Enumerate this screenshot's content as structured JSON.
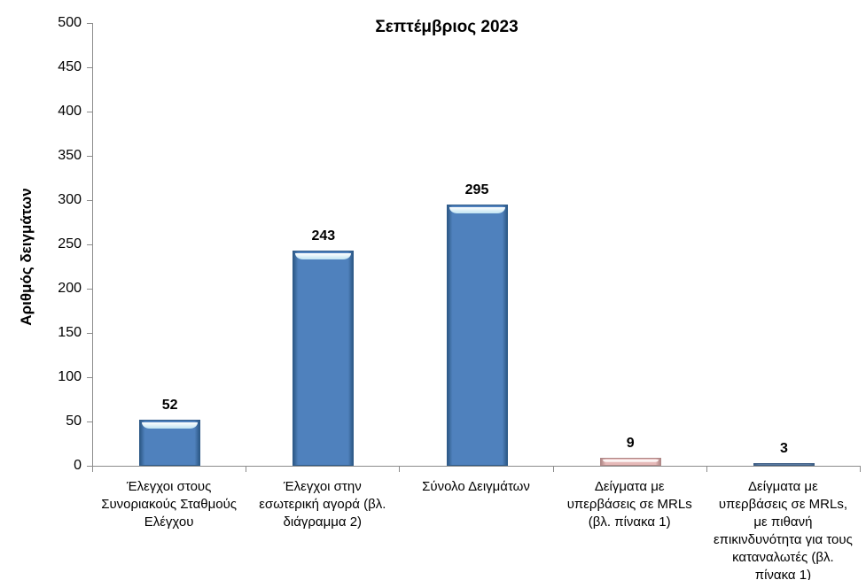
{
  "chart_data": {
    "type": "bar",
    "title": "Σεπτέμβριος 2023",
    "xlabel": "",
    "ylabel": "Αριθμός δειγμάτων",
    "ylim": [
      0,
      500
    ],
    "ytick_step": 50,
    "yticks": [
      0,
      50,
      100,
      150,
      200,
      250,
      300,
      350,
      400,
      450,
      500
    ],
    "grid": "off",
    "legend": "none",
    "categories": [
      "Έλεγχοι στους Συνοριακούς Σταθμούς Ελέγχου",
      "Έλεγχοι στην εσωτερική αγορά (βλ. διάγραμμα 2)",
      "Σύνολο Δειγμάτων",
      "Δείγματα με υπερβάσεις σε MRLs (βλ. πίνακα 1)",
      "Δείγματα με υπερβάσεις σε MRLs, με πιθανή επικινδυνότητα για τους καταναλωτές (βλ. πίνακα 1)"
    ],
    "values": [
      52,
      243,
      295,
      9,
      3
    ],
    "bars": [
      {
        "label": "52",
        "value": 52,
        "body_color": "#4f81bd",
        "border_color": "#2e5a88",
        "highlight_color": "#bfe3f2"
      },
      {
        "label": "243",
        "value": 243,
        "body_color": "#4f81bd",
        "border_color": "#2e5a88",
        "highlight_color": "#bfe3f2"
      },
      {
        "label": "295",
        "value": 295,
        "body_color": "#4f81bd",
        "border_color": "#2e5a88",
        "highlight_color": "#bfe3f2"
      },
      {
        "label": "9",
        "value": 9,
        "body_color": "#e6b9b8",
        "border_color": "#b08887",
        "highlight_color": "#f5e3e2"
      },
      {
        "label": "3",
        "value": 3,
        "body_color": "#5b7ba1",
        "border_color": "#3d5e85",
        "highlight_color": ""
      }
    ]
  },
  "colors": {
    "axis": "#8c8c8c",
    "text": "#000000",
    "background": "#ffffff",
    "bar_blue": "#4f81bd",
    "bar_pink": "#e6b9b8",
    "bar_slate": "#5b7ba1"
  }
}
